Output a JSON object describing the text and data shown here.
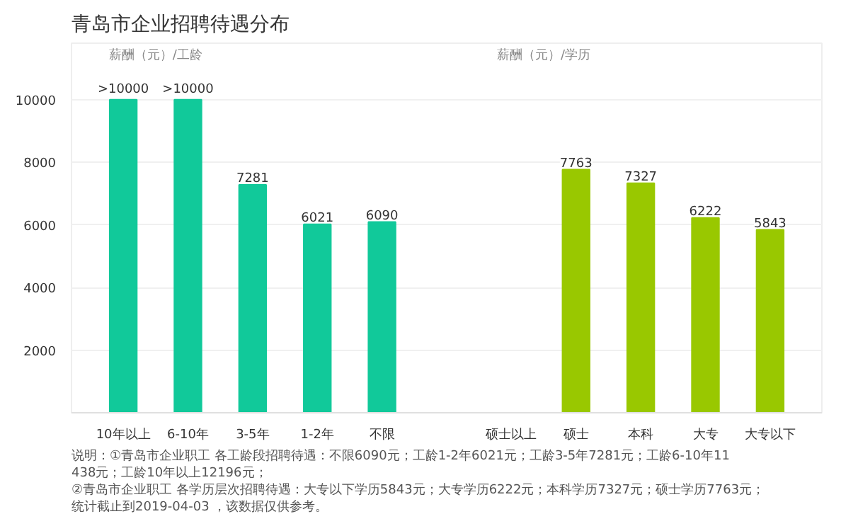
{
  "chart_data": {
    "type": "bar",
    "title": "青岛市企业招聘待遇分布",
    "categories": [
      "10年以上",
      "6-10年",
      "3-5年",
      "1-2年",
      "不限",
      null,
      "硕士以上",
      "硕士",
      "本科",
      "大专",
      "大专以下"
    ],
    "values": [
      10000,
      10000,
      7281,
      6021,
      6090,
      null,
      null,
      7763,
      7327,
      6222,
      5843
    ],
    "colors": [
      "#11c99a",
      "#11c99a",
      "#11c99a",
      "#11c99a",
      "#11c99a",
      null,
      null,
      "#99c800",
      "#99c800",
      "#99c800",
      "#99c800"
    ],
    "value_labels": [
      ">10000",
      ">10000",
      "7281",
      "6021",
      "6090",
      null,
      null,
      "7763",
      "7327",
      "6222",
      "5843"
    ],
    "ylim": [
      0,
      11800
    ],
    "yticks": [
      2000,
      4000,
      6000,
      8000,
      10000
    ],
    "grid": "y",
    "annotations": [
      "薪酬（元）/工龄",
      "薪酬（元）/学历",
      "说明：①青岛市企业职工 各工龄段招聘待遇：不限6090元；工龄1-2年6021元；工龄3-5年7281元；工龄6-10年11438元；工龄10年以上12196元；",
      "②青岛市企业职工 各学历层次招聘待遇：大专以下学历5843元；大专学历6222元；本科学历7327元；硕士学历7763元；",
      "统计截止到2019-04-03 ，该数据仅供参考。"
    ]
  }
}
